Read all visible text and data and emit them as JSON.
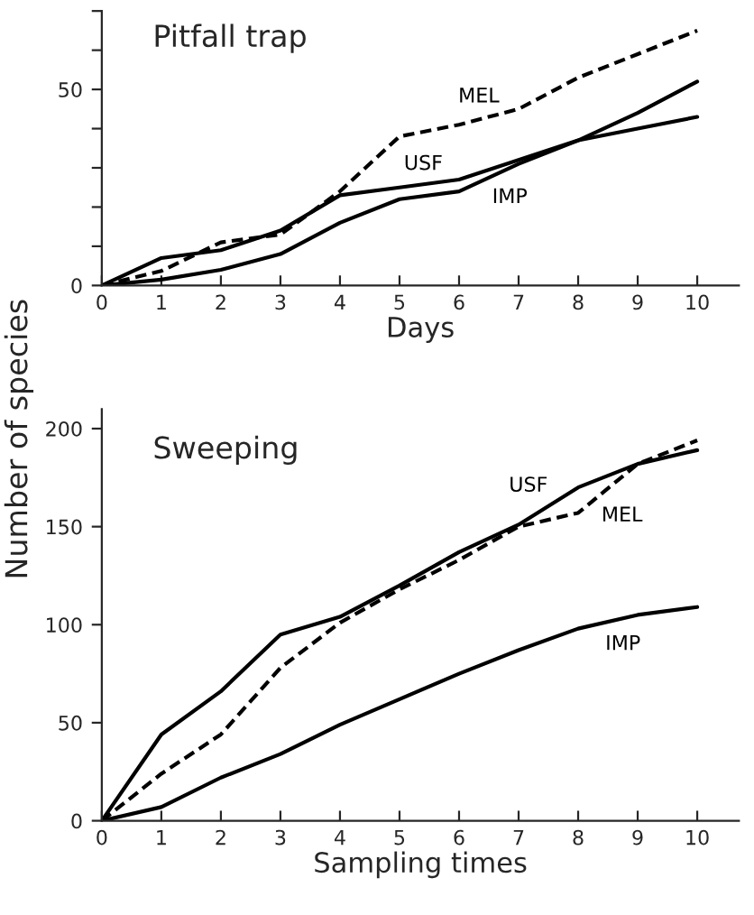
{
  "chart_data": [
    {
      "type": "line",
      "title": "Pitfall trap",
      "xlabel": "Days",
      "x": [
        0,
        1,
        2,
        3,
        4,
        5,
        6,
        7,
        8,
        9,
        10
      ],
      "xlim": [
        0,
        10.7
      ],
      "xticks": [
        0,
        1,
        2,
        3,
        4,
        5,
        6,
        7,
        8,
        9,
        10
      ],
      "ylim": [
        0,
        70
      ],
      "yticks": [
        0,
        {
          "value": 10,
          "label": null
        },
        {
          "value": 20,
          "label": null
        },
        {
          "value": 30,
          "label": null
        },
        {
          "value": 40,
          "label": null
        },
        50,
        {
          "value": 60,
          "label": null
        },
        {
          "value": 70,
          "label": null
        }
      ],
      "grid": false,
      "legend": false,
      "marker": "none",
      "series": [
        {
          "name": "MEL",
          "color": "#000000",
          "line_style": "dashed",
          "values": [
            0,
            3.7,
            11,
            13,
            24,
            38,
            41,
            45,
            53,
            59,
            65
          ]
        },
        {
          "name": "USF",
          "color": "#000000",
          "line_style": "solid",
          "values": [
            0,
            7,
            9,
            14,
            23,
            25,
            27,
            32,
            37,
            40,
            43
          ]
        },
        {
          "name": "IMP",
          "color": "#000000",
          "line_style": "solid",
          "values": [
            0,
            1.5,
            4,
            8,
            16,
            22,
            24,
            31,
            37,
            44,
            52
          ]
        }
      ]
    },
    {
      "type": "line",
      "title": "Sweeping",
      "xlabel": "Sampling times",
      "ylabel": "Number of species",
      "x": [
        0,
        1,
        2,
        3,
        4,
        5,
        6,
        7,
        8,
        9,
        10
      ],
      "xlim": [
        0,
        10.7
      ],
      "xticks": [
        0,
        1,
        2,
        3,
        4,
        5,
        6,
        7,
        8,
        9,
        10
      ],
      "ylim": [
        0,
        210
      ],
      "yticks": [
        0,
        50,
        100,
        150,
        200
      ],
      "grid": false,
      "legend": false,
      "marker": "none",
      "series": [
        {
          "name": "USF",
          "color": "#000000",
          "line_style": "solid",
          "values": [
            0,
            44,
            66,
            95,
            104,
            120,
            137,
            151,
            170,
            182,
            189
          ]
        },
        {
          "name": "MEL",
          "color": "#000000",
          "line_style": "dashed",
          "values": [
            0,
            24,
            44,
            78,
            101,
            118,
            133,
            150,
            157,
            182,
            194
          ]
        },
        {
          "name": "IMP",
          "color": "#000000",
          "line_style": "solid",
          "values": [
            0,
            7,
            22,
            34,
            49,
            62,
            75,
            87,
            98,
            105,
            109
          ]
        }
      ]
    }
  ]
}
